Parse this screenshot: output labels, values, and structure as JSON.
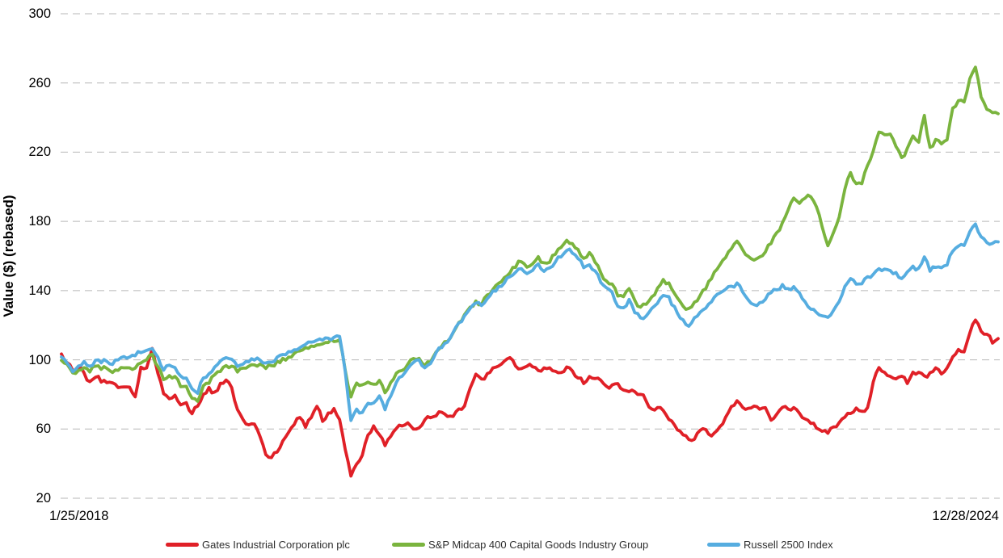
{
  "chart_data": {
    "type": "line",
    "title": "",
    "ylabel": "Value ($) (rebased)",
    "x_start_label": "1/25/2018",
    "x_end_label": "12/28/2024",
    "ylim": [
      20,
      300
    ],
    "yticks": [
      300,
      260,
      220,
      180,
      140,
      100,
      60,
      20
    ],
    "grid": "horizontal-dashed",
    "gridline_color": "#b7b7b7",
    "legend_position": "bottom",
    "x_note": "values are evenly spaced in time from 1/25/2018 to 12/28/2024",
    "series": [
      {
        "name": "Gates Industrial Corporation plc",
        "color": "#e02027",
        "values": [
          104,
          98,
          93.5,
          96,
          92,
          87.5,
          90.5,
          87.5,
          87,
          86.5,
          83.5,
          84,
          84.5,
          79,
          95.5,
          95.5,
          107,
          92,
          81,
          77.5,
          79.5,
          73.5,
          75.5,
          69,
          73,
          80.5,
          83.5,
          81,
          86.5,
          88.5,
          84,
          71,
          65,
          62,
          63,
          56,
          45,
          44,
          47,
          53.5,
          58,
          63,
          67,
          61.5,
          66.5,
          73.5,
          65,
          69,
          71.5,
          66,
          47.5,
          33.3,
          40,
          44.5,
          56,
          61.5,
          57,
          50,
          55.5,
          60,
          62,
          63,
          60.5,
          60.5,
          65,
          67,
          68.2,
          69.5,
          67.5,
          67,
          72,
          72.7,
          83.5,
          92,
          88.5,
          92,
          95,
          96.5,
          98.7,
          101,
          96,
          94.8,
          96.5,
          95.8,
          93.5,
          95,
          95.5,
          94,
          92.5,
          96,
          94,
          90,
          86.5,
          90.8,
          89,
          88,
          84.2,
          85.5,
          86.5,
          82.5,
          81.5,
          81.5,
          80.5,
          76,
          71.5,
          73,
          71,
          65.8,
          62.3,
          59,
          56,
          53,
          57,
          60,
          56.5,
          57.5,
          61.5,
          67,
          72.5,
          76,
          72.5,
          71.5,
          73,
          71.7,
          72.5,
          65.2,
          69,
          73,
          71.7,
          72.7,
          69.5,
          66,
          63.3,
          61,
          58.7,
          57.8,
          61,
          64,
          67,
          69.5,
          71.8,
          70.3,
          72,
          87,
          95,
          93,
          90.3,
          89.3,
          91,
          86.7,
          93.3,
          93,
          90.5,
          92,
          95,
          92,
          95.5,
          101.5,
          106.5,
          105,
          115.5,
          123.5,
          117,
          115,
          110.2,
          112
        ]
      },
      {
        "name": "S&P Midcap 400 Capital Goods Industry Group",
        "color": "#7ab43e",
        "values": [
          100,
          97,
          92,
          94,
          95.5,
          93,
          96,
          94.2,
          95.5,
          92.3,
          94.2,
          95.1,
          95.5,
          95.4,
          97.8,
          99.9,
          103,
          96,
          89,
          91,
          90,
          84.8,
          84.5,
          77.8,
          75.8,
          85.5,
          87,
          91,
          93.5,
          96.2,
          95.8,
          93,
          95.4,
          96.2,
          97,
          97.7,
          95.5,
          96,
          98.8,
          100.3,
          102,
          103.8,
          104.8,
          106.5,
          107.7,
          108.2,
          109.5,
          110.3,
          110.8,
          111.5,
          93.5,
          78.5,
          87,
          85,
          87.5,
          86,
          88.7,
          81.5,
          86.5,
          91.7,
          94,
          97.5,
          100.7,
          100.8,
          96.5,
          99,
          105,
          107.5,
          110.7,
          116.2,
          122,
          126,
          130.8,
          134,
          132.2,
          137.3,
          141,
          144,
          147.5,
          150.5,
          154,
          157.2,
          153.5,
          155.3,
          159.5,
          155.5,
          156.8,
          161.5,
          165.5,
          169.3,
          167.2,
          163.5,
          159.2,
          161.5,
          156.5,
          150.2,
          145.5,
          144,
          137,
          136.7,
          141.5,
          134.2,
          130.3,
          132,
          136.2,
          141,
          146,
          144.7,
          138.3,
          133,
          129,
          130,
          134.5,
          139.8,
          144.8,
          150.5,
          154.7,
          159.3,
          164,
          169,
          163.7,
          159.5,
          157.5,
          159.7,
          162.5,
          167.1,
          173,
          179,
          186.5,
          193.5,
          190.5,
          193.5,
          194.3,
          188,
          176.5,
          165.8,
          174,
          182.3,
          198.3,
          208.5,
          201.3,
          202.3,
          212.5,
          221,
          231.5,
          229.5,
          230.2,
          223.8,
          216.5,
          222.3,
          229.7,
          225.5,
          241,
          222.3,
          227,
          224.8,
          226.7,
          245.5,
          249.3,
          249.5,
          262.5,
          268.5,
          252.3,
          244.5,
          242.7,
          242.5
        ]
      },
      {
        "name": "Russell 2500 Index",
        "color": "#56ade0",
        "values": [
          101.5,
          98.5,
          93,
          96,
          99,
          96.7,
          99.3,
          98.2,
          99.5,
          97.6,
          99.8,
          101.3,
          102,
          102.3,
          104.5,
          105.4,
          106,
          101.8,
          94,
          96.5,
          95,
          90.3,
          90,
          83.3,
          80.8,
          90,
          91.7,
          96.3,
          99,
          101.7,
          100.7,
          96.5,
          97.5,
          98.3,
          100,
          100,
          98.5,
          99,
          101.8,
          103.2,
          104.5,
          106.3,
          107.2,
          109,
          110.1,
          110.8,
          111.5,
          112.3,
          112.8,
          113.5,
          92.5,
          65.5,
          72,
          69.5,
          75,
          74.5,
          79.7,
          71.5,
          78.5,
          86.7,
          90.3,
          94.5,
          98.8,
          99.8,
          95.5,
          98,
          103.8,
          107,
          110.1,
          115.7,
          121.5,
          125.2,
          129.8,
          133,
          131.1,
          135.8,
          139.5,
          142.3,
          144.5,
          147.5,
          150.7,
          153.3,
          150,
          151.9,
          155.7,
          151.5,
          152.7,
          156.5,
          160,
          163.7,
          161.7,
          158,
          153.7,
          155.5,
          151,
          145.1,
          141.3,
          138.5,
          131,
          130.2,
          135,
          127.7,
          123.8,
          125.5,
          129.7,
          133,
          137.5,
          136.1,
          130.2,
          124,
          120,
          121,
          125,
          129.2,
          132.5,
          136.5,
          138.8,
          140.8,
          142.5,
          143.8,
          139.3,
          134.5,
          131.8,
          133.2,
          135,
          138.3,
          140.5,
          143,
          140.9,
          142.3,
          138.5,
          133.7,
          129.5,
          127,
          125.2,
          124,
          129,
          134.2,
          142,
          147,
          143.2,
          143.3,
          147.5,
          149.8,
          153.2,
          152,
          152,
          149.9,
          146.5,
          150.2,
          154,
          152.5,
          159.7,
          151.5,
          154,
          153.8,
          154.5,
          163,
          165.7,
          165.5,
          173.5,
          178.5,
          171,
          167.5,
          167.6,
          168.5
        ]
      }
    ]
  }
}
